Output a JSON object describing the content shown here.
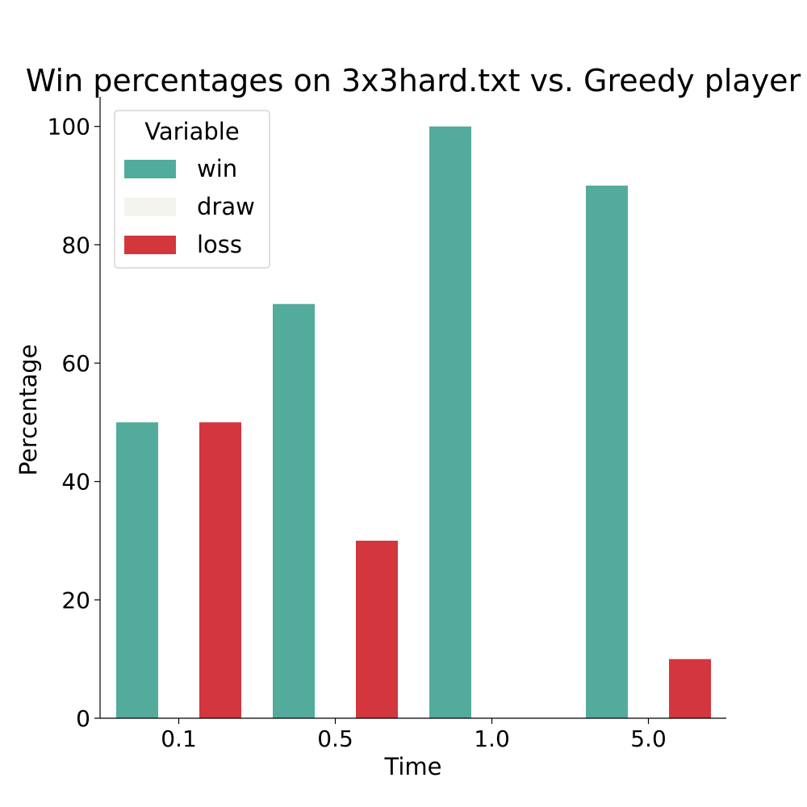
{
  "chart_data": {
    "type": "bar",
    "title": "Win percentages on 3x3hard.txt vs. Greedy player",
    "xlabel": "Time",
    "ylabel": "Percentage",
    "categories": [
      "0.1",
      "0.5",
      "1.0",
      "5.0"
    ],
    "ylim": [
      0,
      105
    ],
    "yticks": [
      0,
      20,
      40,
      60,
      80,
      100
    ],
    "series": [
      {
        "name": "win",
        "color": "#52ab9b",
        "values": [
          50,
          70,
          100,
          90
        ]
      },
      {
        "name": "draw",
        "color": "#f4f4ec",
        "values": [
          0,
          0,
          0,
          0
        ]
      },
      {
        "name": "loss",
        "color": "#d4363e",
        "values": [
          50,
          30,
          0,
          10
        ]
      }
    ],
    "legend": {
      "title": "Variable",
      "position": "top-left"
    },
    "grid": false
  }
}
